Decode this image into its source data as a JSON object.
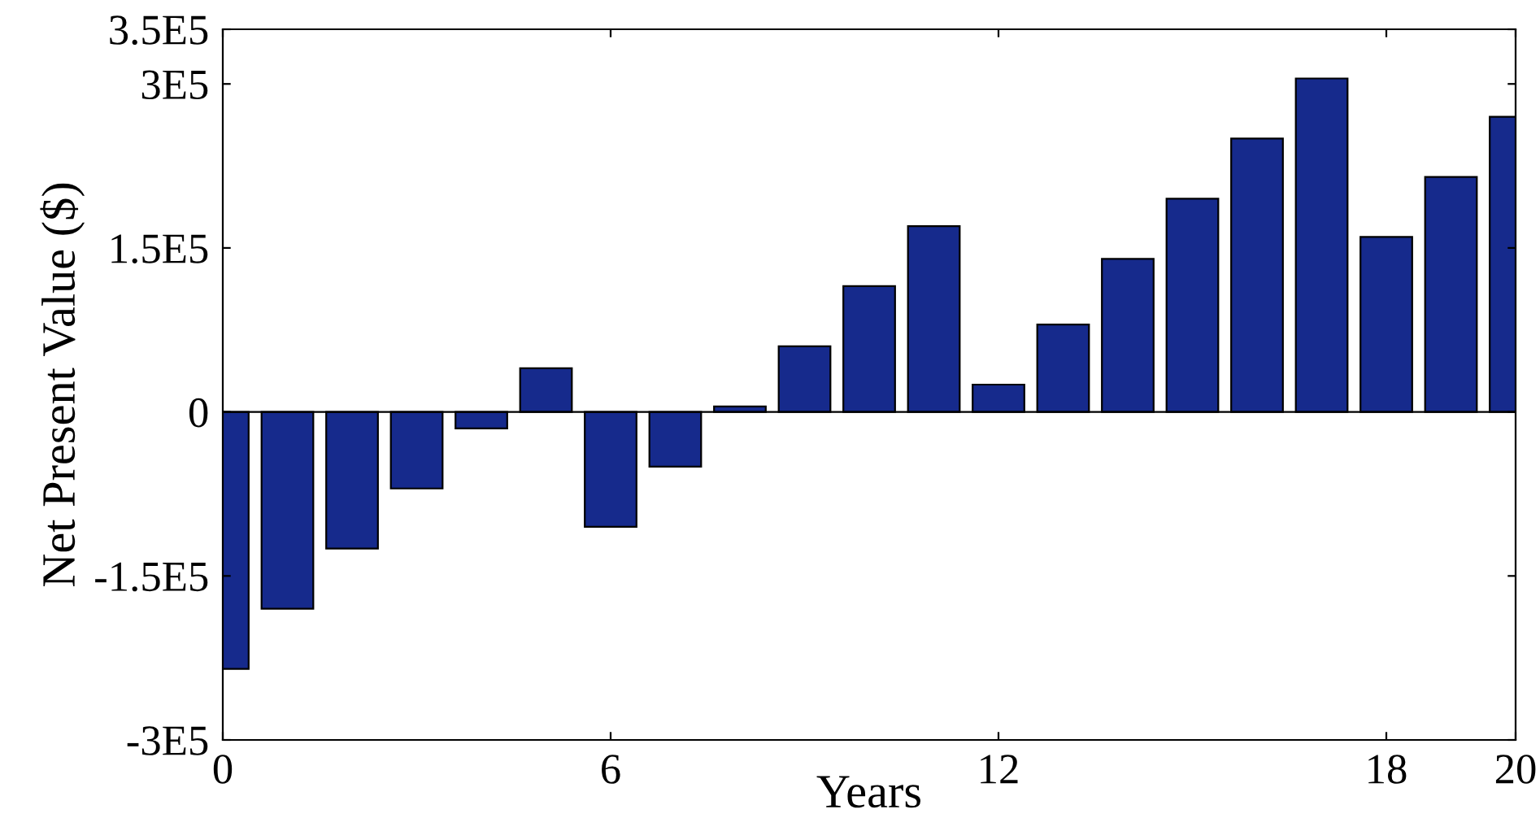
{
  "chart_data": {
    "type": "bar",
    "xlabel": "Years",
    "ylabel": "Net Present Value ($)",
    "x": [
      0,
      1,
      2,
      3,
      4,
      5,
      6,
      7,
      8,
      9,
      10,
      11,
      12,
      13,
      14,
      15,
      16,
      17,
      18,
      19,
      20
    ],
    "values": [
      -235000,
      -180000,
      -125000,
      -70000,
      -15000,
      40000,
      -105000,
      -50000,
      5000,
      60000,
      115000,
      170000,
      25000,
      80000,
      140000,
      195000,
      250000,
      305000,
      160000,
      215000,
      270000
    ],
    "ref_lines": [
      {
        "axis": "y",
        "value": 0,
        "color": "#000000"
      }
    ],
    "color": "#162a8c",
    "xlim": [
      0,
      20
    ],
    "xticks": [
      0,
      6,
      12,
      18,
      20
    ],
    "ylim": [
      -300000,
      350000
    ],
    "yticks": [
      {
        "value": -300000,
        "label": "-3E5"
      },
      {
        "value": -150000,
        "label": "-1.5E5"
      },
      {
        "value": 0,
        "label": "0"
      },
      {
        "value": 150000,
        "label": "1.5E5"
      },
      {
        "value": 300000,
        "label": "3E5"
      },
      {
        "value": 350000,
        "label": "3.5E5"
      }
    ],
    "grid": false,
    "legend": false
  }
}
